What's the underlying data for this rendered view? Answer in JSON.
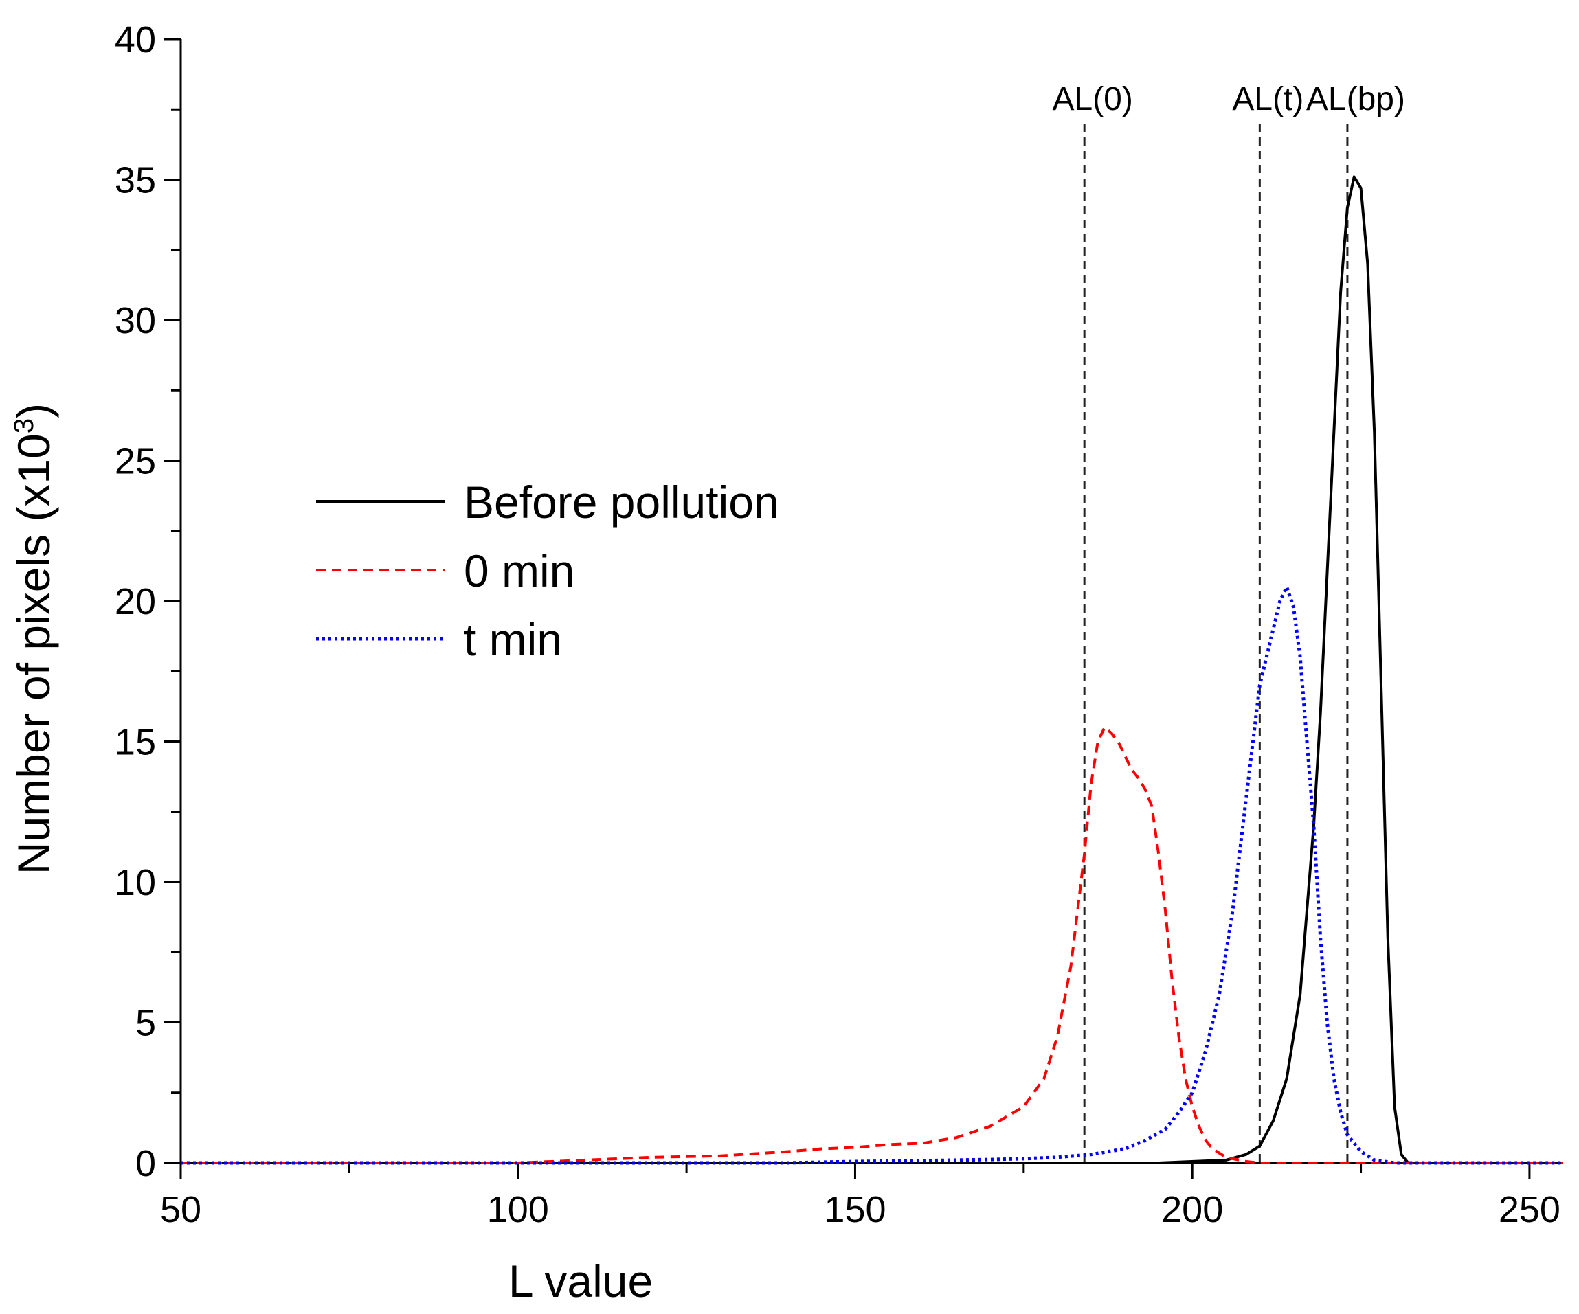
{
  "chart_data": {
    "type": "line",
    "xlabel": "L value",
    "ylabel_main": "Number of pixels (x10",
    "ylabel_sup": "3",
    "ylabel_close": ")",
    "xlim": [
      50,
      255
    ],
    "ylim": [
      0,
      40
    ],
    "xticks_major": [
      50,
      100,
      150,
      200,
      250
    ],
    "xticks_minor": [
      75,
      125,
      175,
      225
    ],
    "yticks_major": [
      0,
      5,
      10,
      15,
      20,
      25,
      30,
      35,
      40
    ],
    "legend_position": "center-left",
    "grid": false,
    "reference_lines": [
      {
        "label": "AL(0)",
        "x": 184
      },
      {
        "label": "AL(t)",
        "x": 210
      },
      {
        "label": "AL(bp)",
        "x": 223
      }
    ],
    "series": [
      {
        "name": "Before pollution",
        "color": "#000000",
        "style": "solid",
        "points": [
          [
            50,
            0
          ],
          [
            195,
            0
          ],
          [
            205,
            0.1
          ],
          [
            208,
            0.3
          ],
          [
            210,
            0.6
          ],
          [
            212,
            1.5
          ],
          [
            214,
            3
          ],
          [
            216,
            6
          ],
          [
            218,
            12
          ],
          [
            219,
            16
          ],
          [
            220,
            21
          ],
          [
            221,
            26
          ],
          [
            222,
            31
          ],
          [
            223,
            34
          ],
          [
            224,
            35.1
          ],
          [
            225,
            34.7
          ],
          [
            226,
            32
          ],
          [
            227,
            26
          ],
          [
            228,
            17
          ],
          [
            229,
            8
          ],
          [
            230,
            2
          ],
          [
            231,
            0.3
          ],
          [
            232,
            0
          ],
          [
            255,
            0
          ]
        ]
      },
      {
        "name": "0 min",
        "color": "#ff0000",
        "style": "dashed",
        "points": [
          [
            50,
            0
          ],
          [
            100,
            0
          ],
          [
            110,
            0.1
          ],
          [
            120,
            0.2
          ],
          [
            130,
            0.25
          ],
          [
            140,
            0.4
          ],
          [
            145,
            0.5
          ],
          [
            150,
            0.55
          ],
          [
            155,
            0.65
          ],
          [
            160,
            0.7
          ],
          [
            165,
            0.9
          ],
          [
            170,
            1.3
          ],
          [
            175,
            2
          ],
          [
            178,
            3
          ],
          [
            180,
            4.5
          ],
          [
            182,
            7
          ],
          [
            184,
            11
          ],
          [
            185,
            13.5
          ],
          [
            186,
            15
          ],
          [
            187,
            15.5
          ],
          [
            188,
            15.3
          ],
          [
            189,
            15
          ],
          [
            190,
            14.5
          ],
          [
            191,
            14
          ],
          [
            192,
            13.7
          ],
          [
            193,
            13.3
          ],
          [
            194,
            12.7
          ],
          [
            195,
            11
          ],
          [
            196,
            9
          ],
          [
            197,
            6.5
          ],
          [
            198,
            4.5
          ],
          [
            199,
            3
          ],
          [
            200,
            2
          ],
          [
            201,
            1.3
          ],
          [
            202,
            0.8
          ],
          [
            203,
            0.5
          ],
          [
            205,
            0.2
          ],
          [
            208,
            0.05
          ],
          [
            210,
            0
          ],
          [
            255,
            0
          ]
        ]
      },
      {
        "name": "t min",
        "color": "#0000ff",
        "style": "dotted",
        "points": [
          [
            50,
            0
          ],
          [
            140,
            0
          ],
          [
            150,
            0.05
          ],
          [
            160,
            0.08
          ],
          [
            170,
            0.12
          ],
          [
            175,
            0.15
          ],
          [
            180,
            0.2
          ],
          [
            185,
            0.3
          ],
          [
            190,
            0.5
          ],
          [
            193,
            0.8
          ],
          [
            196,
            1.2
          ],
          [
            198,
            1.8
          ],
          [
            200,
            2.5
          ],
          [
            202,
            4
          ],
          [
            204,
            6
          ],
          [
            206,
            9
          ],
          [
            208,
            13
          ],
          [
            210,
            17
          ],
          [
            212,
            19
          ],
          [
            213,
            20
          ],
          [
            214,
            20.5
          ],
          [
            215,
            19.8
          ],
          [
            216,
            18
          ],
          [
            217,
            15
          ],
          [
            218,
            12
          ],
          [
            219,
            8
          ],
          [
            220,
            5
          ],
          [
            221,
            3
          ],
          [
            222,
            1.8
          ],
          [
            223,
            1
          ],
          [
            225,
            0.4
          ],
          [
            227,
            0.1
          ],
          [
            230,
            0
          ],
          [
            255,
            0
          ]
        ]
      }
    ]
  }
}
